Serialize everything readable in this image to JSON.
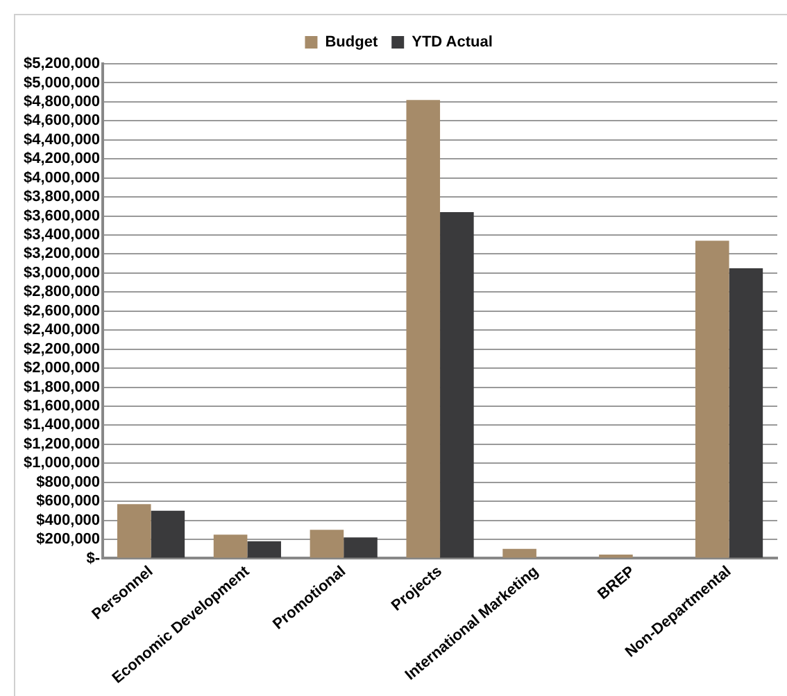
{
  "chart_data": {
    "type": "bar",
    "categories": [
      "Personnel",
      "Economic Development",
      "Promotional",
      "Projects",
      "International Marketing",
      "BREP",
      "Non-Departmental"
    ],
    "series": [
      {
        "name": "Budget",
        "color": "#a68b69",
        "values": [
          570000,
          250000,
          300000,
          4820000,
          100000,
          40000,
          3340000
        ]
      },
      {
        "name": "YTD Actual",
        "color": "#3a3a3c",
        "values": [
          500000,
          180000,
          220000,
          3640000,
          0,
          0,
          3050000
        ]
      }
    ],
    "ylim": [
      0,
      5200000
    ],
    "yticks": [
      {
        "value": 0,
        "label": "$-"
      },
      {
        "value": 200000,
        "label": "$200,000"
      },
      {
        "value": 400000,
        "label": "$400,000"
      },
      {
        "value": 600000,
        "label": "$600,000"
      },
      {
        "value": 800000,
        "label": "$800,000"
      },
      {
        "value": 1000000,
        "label": "$1,000,000"
      },
      {
        "value": 1200000,
        "label": "$1,200,000"
      },
      {
        "value": 1400000,
        "label": "$1,400,000"
      },
      {
        "value": 1600000,
        "label": "$1,600,000"
      },
      {
        "value": 1800000,
        "label": "$1,800,000"
      },
      {
        "value": 2000000,
        "label": "$2,000,000"
      },
      {
        "value": 2200000,
        "label": "$2,200,000"
      },
      {
        "value": 2400000,
        "label": "$2,400,000"
      },
      {
        "value": 2600000,
        "label": "$2,600,000"
      },
      {
        "value": 2800000,
        "label": "$2,800,000"
      },
      {
        "value": 3000000,
        "label": "$3,000,000"
      },
      {
        "value": 3200000,
        "label": "$3,200,000"
      },
      {
        "value": 3400000,
        "label": "$3,400,000"
      },
      {
        "value": 3600000,
        "label": "$3,600,000"
      },
      {
        "value": 3800000,
        "label": "$3,800,000"
      },
      {
        "value": 4000000,
        "label": "$4,000,000"
      },
      {
        "value": 4200000,
        "label": "$4,200,000"
      },
      {
        "value": 4400000,
        "label": "$4,400,000"
      },
      {
        "value": 4600000,
        "label": "$4,600,000"
      },
      {
        "value": 4800000,
        "label": "$4,800,000"
      },
      {
        "value": 5000000,
        "label": "$5,000,000"
      },
      {
        "value": 5200000,
        "label": "$5,200,000"
      }
    ],
    "grid": "y",
    "legend": "top"
  }
}
